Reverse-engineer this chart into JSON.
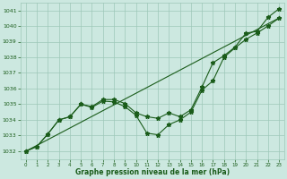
{
  "xlabel": "Graphe pression niveau de la mer (hPa)",
  "hours": [
    0,
    1,
    2,
    3,
    4,
    5,
    6,
    7,
    8,
    9,
    10,
    11,
    12,
    13,
    14,
    15,
    16,
    17,
    18,
    19,
    20,
    21,
    22,
    23
  ],
  "line_straight": [
    1032.0,
    1032.37,
    1032.74,
    1033.11,
    1033.48,
    1033.85,
    1034.22,
    1034.59,
    1034.96,
    1035.33,
    1035.7,
    1036.07,
    1036.44,
    1036.81,
    1037.18,
    1037.55,
    1037.92,
    1038.29,
    1038.66,
    1039.03,
    1039.4,
    1039.77,
    1040.14,
    1040.51
  ],
  "line_main": [
    1032.0,
    1032.3,
    1033.1,
    1034.0,
    1034.2,
    1035.0,
    1034.8,
    1035.2,
    1035.15,
    1034.85,
    1034.3,
    1033.15,
    1033.05,
    1033.7,
    1034.0,
    1034.5,
    1035.9,
    1036.5,
    1038.0,
    1038.6,
    1039.15,
    1039.55,
    1040.0,
    1040.5
  ],
  "line_upper": [
    1032.0,
    1032.3,
    1033.1,
    1034.0,
    1034.2,
    1035.0,
    1034.85,
    1035.3,
    1035.3,
    1035.05,
    1034.45,
    1034.2,
    1034.1,
    1034.45,
    1034.2,
    1034.65,
    1036.1,
    1037.65,
    1038.1,
    1038.65,
    1039.55,
    1039.65,
    1040.55,
    1041.1
  ],
  "ylim": [
    1031.5,
    1041.5
  ],
  "yticks": [
    1032,
    1033,
    1034,
    1035,
    1036,
    1037,
    1038,
    1039,
    1040,
    1041
  ],
  "line_color": "#1a5c1a",
  "bg_color": "#cce8e0",
  "grid_color": "#9ec8b8",
  "label_color": "#1a5c1a"
}
